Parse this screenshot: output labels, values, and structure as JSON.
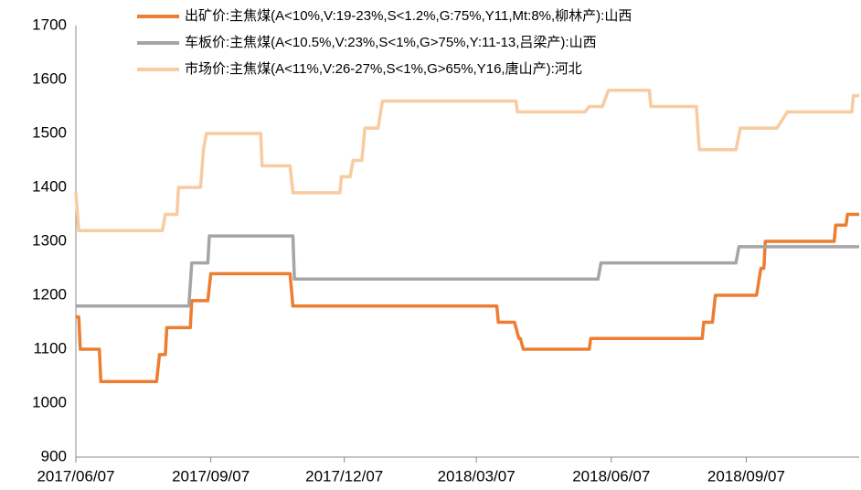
{
  "chart_data": {
    "type": "line",
    "xlim": [
      "2017/06/07",
      "2018/11/23"
    ],
    "xticks": [
      "2017/06/07",
      "2017/09/07",
      "2017/12/07",
      "2018/03/07",
      "2018/06/07",
      "2018/09/07"
    ],
    "ylim": [
      900,
      1700
    ],
    "yticks": [
      900,
      1000,
      1100,
      1200,
      1300,
      1400,
      1500,
      1600,
      1700
    ],
    "grid": false,
    "legend": "top",
    "series": [
      {
        "name": "出矿价:主焦煤(A<10%,V:19-23%,S<1.2%,G:75%,Y11,Mt:8%,柳林产):山西",
        "color": "#ed7d31",
        "x": [
          "2017/06/07",
          "2017/06/09",
          "2017/06/10",
          "2017/06/23",
          "2017/06/24",
          "2017/08/01",
          "2017/08/03",
          "2017/08/07",
          "2017/08/08",
          "2017/08/24",
          "2017/08/25",
          "2017/09/05",
          "2017/09/07",
          "2017/10/31",
          "2017/11/02",
          "2018/03/21",
          "2018/03/22",
          "2018/04/02",
          "2018/04/05",
          "2018/04/06",
          "2018/04/08",
          "2018/05/23",
          "2018/05/24",
          "2018/08/08",
          "2018/08/09",
          "2018/08/15",
          "2018/08/17",
          "2018/09/14",
          "2018/09/17",
          "2018/09/19",
          "2018/09/20",
          "2018/11/06",
          "2018/11/07",
          "2018/11/14",
          "2018/11/15",
          "2018/11/23"
        ],
        "values": [
          1160,
          1160,
          1100,
          1100,
          1040,
          1040,
          1090,
          1090,
          1140,
          1140,
          1190,
          1190,
          1240,
          1240,
          1180,
          1180,
          1150,
          1150,
          1120,
          1120,
          1100,
          1100,
          1120,
          1120,
          1150,
          1150,
          1200,
          1200,
          1250,
          1250,
          1300,
          1300,
          1330,
          1330,
          1350,
          1350
        ]
      },
      {
        "name": "车板价:主焦煤(A<10.5%,V:23%,S<1%,G>75%,Y:11-13,吕梁产):山西",
        "color": "#a5a5a5",
        "x": [
          "2017/06/07",
          "2017/08/23",
          "2017/08/25",
          "2017/09/05",
          "2017/09/06",
          "2017/11/02",
          "2017/11/03",
          "2018/05/29",
          "2018/05/31",
          "2018/08/31",
          "2018/09/02",
          "2018/11/23"
        ],
        "values": [
          1180,
          1180,
          1260,
          1260,
          1310,
          1310,
          1230,
          1230,
          1260,
          1260,
          1290,
          1290
        ]
      },
      {
        "name": "市场价:主焦煤(A<11%,V:26-27%,S<1%,G>65%,Y16,唐山产):河北",
        "color": "#f8cba0",
        "x": [
          "2017/06/07",
          "2017/06/09",
          "2017/08/05",
          "2017/08/07",
          "2017/08/15",
          "2017/08/16",
          "2017/08/31",
          "2017/09/02",
          "2017/09/04",
          "2017/10/11",
          "2017/10/12",
          "2017/10/31",
          "2017/11/02",
          "2017/12/04",
          "2017/12/05",
          "2017/12/11",
          "2017/12/13",
          "2017/12/19",
          "2017/12/21",
          "2017/12/30",
          "2018/01/02",
          "2018/04/03",
          "2018/04/04",
          "2018/05/20",
          "2018/05/23",
          "2018/06/01",
          "2018/06/05",
          "2018/07/03",
          "2018/07/04",
          "2018/08/04",
          "2018/08/06",
          "2018/08/31",
          "2018/09/03",
          "2018/09/28",
          "2018/10/05",
          "2018/11/18",
          "2018/11/19",
          "2018/11/23"
        ],
        "values": [
          1390,
          1320,
          1320,
          1350,
          1350,
          1400,
          1400,
          1470,
          1500,
          1500,
          1440,
          1440,
          1390,
          1390,
          1420,
          1420,
          1450,
          1450,
          1510,
          1510,
          1560,
          1560,
          1540,
          1540,
          1550,
          1550,
          1580,
          1580,
          1550,
          1550,
          1470,
          1470,
          1510,
          1510,
          1540,
          1540,
          1570,
          1570
        ]
      }
    ]
  }
}
